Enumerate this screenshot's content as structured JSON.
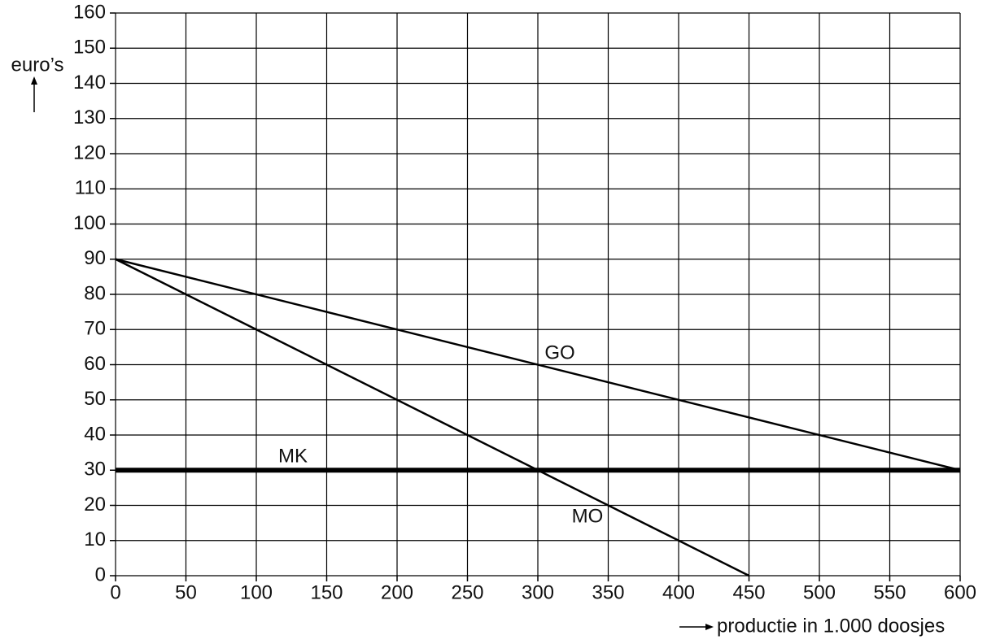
{
  "chart_data": {
    "type": "line",
    "ylabel": "euro’s",
    "xlabel": "productie in 1.000 doosjes",
    "xlim": [
      0,
      600
    ],
    "ylim": [
      0,
      160
    ],
    "xticks": [
      0,
      50,
      100,
      150,
      200,
      250,
      300,
      350,
      400,
      450,
      500,
      550,
      600
    ],
    "yticks": [
      0,
      10,
      20,
      30,
      40,
      50,
      60,
      70,
      80,
      90,
      100,
      110,
      120,
      130,
      140,
      150,
      160
    ],
    "grid": true,
    "series": [
      {
        "name": "GO",
        "color": "#000000",
        "line_width": 2.5,
        "x": [
          0,
          600
        ],
        "values": [
          90,
          30
        ]
      },
      {
        "name": "MO",
        "color": "#000000",
        "line_width": 2.5,
        "x": [
          0,
          450
        ],
        "values": [
          90,
          0
        ]
      },
      {
        "name": "MK",
        "color": "#000000",
        "line_width": 6,
        "x": [
          0,
          600
        ],
        "values": [
          30,
          30
        ]
      }
    ]
  }
}
